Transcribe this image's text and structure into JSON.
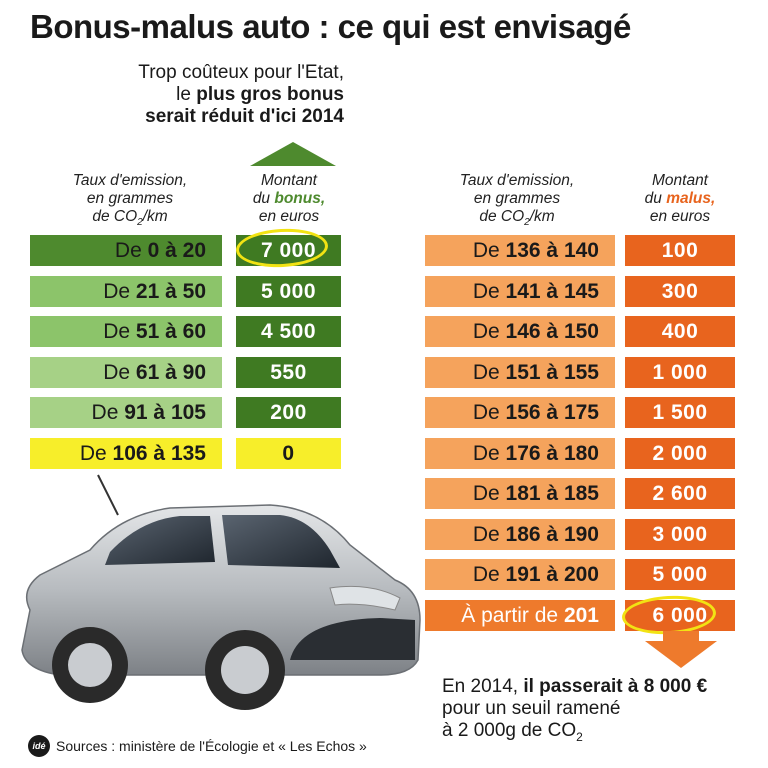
{
  "title": "Bonus-malus auto : ce qui est envisagé",
  "note": {
    "line1": "Trop coûteux pour l'Etat,",
    "line2_pre": "le ",
    "line2_bold": "plus gros bonus",
    "line3": "serait réduit d'ici 2014"
  },
  "bonus_table": {
    "header_taux": [
      "Taux d'emission,",
      "en grammes",
      "de CO",
      "/km"
    ],
    "header_montant": [
      "Montant",
      "du ",
      "bonus,",
      "en euros"
    ],
    "rows": [
      {
        "label_pre": "De ",
        "from": "0",
        "mid": " à ",
        "to": "20",
        "value": "7 000",
        "color": "#4e8a2e",
        "valcolor": "#3f7a22"
      },
      {
        "label_pre": "De ",
        "from": "21",
        "mid": " à ",
        "to": "50",
        "value": "5 000",
        "color": "#8cc46a",
        "valcolor": "#3f7a22"
      },
      {
        "label_pre": "De ",
        "from": "51",
        "mid": " à ",
        "to": "60",
        "value": "4 500",
        "color": "#8cc46a",
        "valcolor": "#3f7a22"
      },
      {
        "label_pre": "De ",
        "from": "61",
        "mid": " à ",
        "to": "90",
        "value": "550",
        "color": "#a6d186",
        "valcolor": "#3f7a22"
      },
      {
        "label_pre": "De ",
        "from": "91",
        "mid": " à ",
        "to": "105",
        "value": "200",
        "color": "#a6d186",
        "valcolor": "#3f7a22"
      },
      {
        "label_pre": "De ",
        "from": "106",
        "mid": " à ",
        "to": "135",
        "value": "0",
        "color": "#f7ee2a",
        "valcolor": "#f7ee2a"
      }
    ]
  },
  "malus_table": {
    "header_taux": [
      "Taux d'emission,",
      "en grammes",
      "de CO",
      "/km"
    ],
    "header_montant": [
      "Montant",
      "du ",
      "malus,",
      "en euros"
    ],
    "rows": [
      {
        "label_pre": "De ",
        "from": "136",
        "mid": " à ",
        "to": "140",
        "value": "100"
      },
      {
        "label_pre": "De ",
        "from": "141",
        "mid": " à ",
        "to": "145",
        "value": "300"
      },
      {
        "label_pre": "De ",
        "from": "146",
        "mid": " à ",
        "to": "150",
        "value": "400"
      },
      {
        "label_pre": "De ",
        "from": "151",
        "mid": " à ",
        "to": "155",
        "value": "1 000"
      },
      {
        "label_pre": "De ",
        "from": "156",
        "mid": " à ",
        "to": "175",
        "value": "1 500"
      },
      {
        "label_pre": "De ",
        "from": "176",
        "mid": " à ",
        "to": "180",
        "value": "2 000"
      },
      {
        "label_pre": "De ",
        "from": "181",
        "mid": " à ",
        "to": "185",
        "value": "2 600"
      },
      {
        "label_pre": "De ",
        "from": "186",
        "mid": " à ",
        "to": "190",
        "value": "3 000"
      },
      {
        "label_pre": "De ",
        "from": "191",
        "mid": " à ",
        "to": "200",
        "value": "5 000"
      },
      {
        "label_pre": "À partir de ",
        "from": "",
        "mid": "",
        "to": "201",
        "value": "6 000"
      }
    ],
    "label_color": "#f5a35c",
    "value_color": "#e8641e",
    "last_label_color": "#ee7a2c"
  },
  "footnote": {
    "pre": "En 2014, ",
    "bold": "il passerait à 8 000 €",
    "line2": "pour un seuil ramené",
    "line3_pre": "à 2 000g de CO",
    "line3_sub": "2"
  },
  "sources": {
    "logo": "idé",
    "text": "Sources : ministère de l'Écologie et « Les Echos »"
  },
  "colors": {
    "bonus_dark": "#4e8a2e",
    "malus_orange": "#e8641e",
    "highlight_circle": "#f2e313"
  }
}
